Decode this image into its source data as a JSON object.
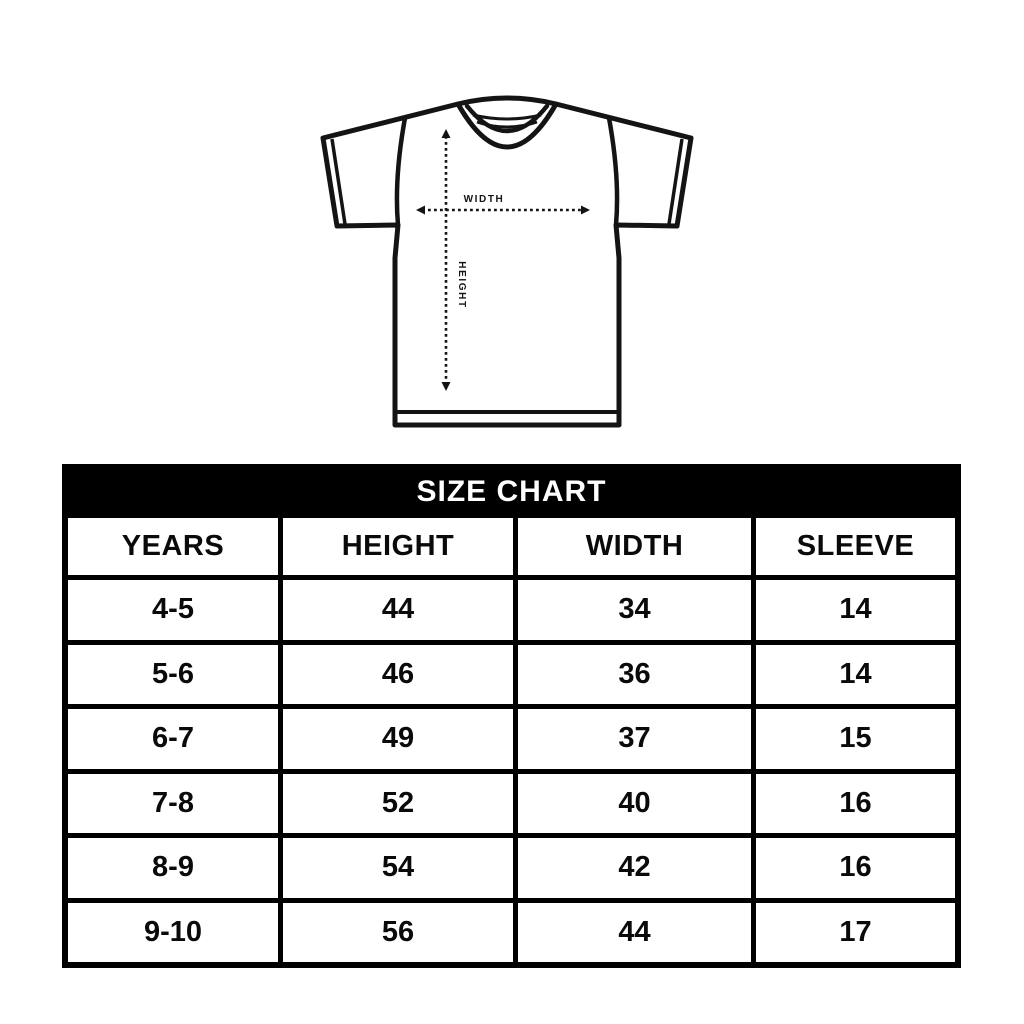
{
  "diagram": {
    "width_label": "WIDTH",
    "height_label": "HEIGHT"
  },
  "table": {
    "title": "SIZE CHART",
    "columns": [
      "YEARS",
      "HEIGHT",
      "WIDTH",
      "SLEEVE"
    ],
    "rows": [
      [
        "4-5",
        "44",
        "34",
        "14"
      ],
      [
        "5-6",
        "46",
        "36",
        "14"
      ],
      [
        "6-7",
        "49",
        "37",
        "15"
      ],
      [
        "7-8",
        "52",
        "40",
        "16"
      ],
      [
        "8-9",
        "54",
        "42",
        "16"
      ],
      [
        "9-10",
        "56",
        "44",
        "17"
      ]
    ]
  },
  "colors": {
    "ink": "#141414",
    "table_grid": "#000000",
    "title_bg": "#000000",
    "title_text": "#ffffff",
    "cell_bg": "#ffffff"
  },
  "chart_data": {
    "type": "table",
    "title": "SIZE CHART",
    "columns": [
      "YEARS",
      "HEIGHT",
      "WIDTH",
      "SLEEVE"
    ],
    "rows": [
      [
        "4-5",
        44,
        34,
        14
      ],
      [
        "5-6",
        46,
        36,
        14
      ],
      [
        "6-7",
        49,
        37,
        15
      ],
      [
        "7-8",
        52,
        40,
        16
      ],
      [
        "8-9",
        54,
        42,
        16
      ],
      [
        "9-10",
        56,
        44,
        17
      ]
    ],
    "annotations": [
      "WIDTH",
      "HEIGHT"
    ]
  }
}
